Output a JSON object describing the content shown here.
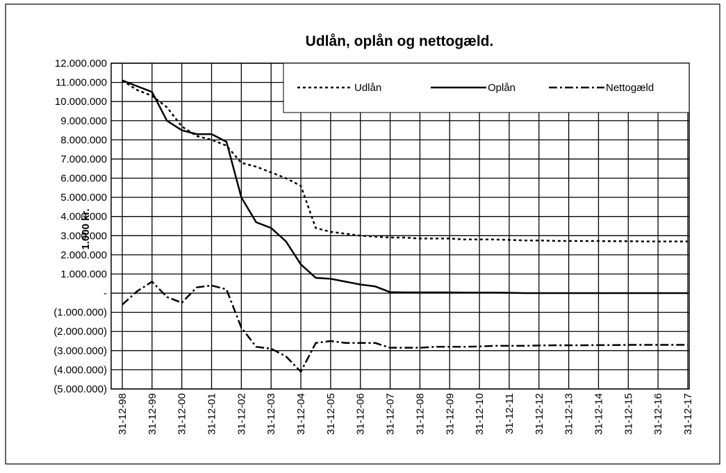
{
  "chart_data": {
    "type": "line",
    "title": "Udlån, oplån og nettogæld.",
    "y_label": "1.000 kr.",
    "categories": [
      "31-12-98",
      null,
      "31-12-99",
      null,
      "31-12-00",
      null,
      "31-12-01",
      null,
      "31-12-02",
      null,
      "31-12-03",
      null,
      "31-12-04",
      null,
      "31-12-05",
      null,
      "31-12-06",
      null,
      "31-12-07",
      null,
      "31-12-08",
      null,
      "31-12-09",
      null,
      "31-12-10",
      null,
      "31-12-11",
      null,
      "31-12-12",
      null,
      "31-12-13",
      null,
      "31-12-14",
      null,
      "31-12-15",
      null,
      "31-12-16",
      null,
      "31-12-17"
    ],
    "series": [
      {
        "name": "Udlån",
        "color": "#000000",
        "line_style": "dotted",
        "values": [
          11100000,
          10600000,
          10300000,
          9700000,
          8700000,
          8200000,
          8000000,
          7700000,
          6800000,
          6600000,
          6300000,
          6000000,
          5600000,
          3400000,
          3200000,
          3100000,
          3000000,
          2950000,
          2900000,
          2900000,
          2850000,
          2850000,
          2850000,
          2800000,
          2800000,
          2800000,
          2780000,
          2750000,
          2750000,
          2730000,
          2720000,
          2720000,
          2720000,
          2710000,
          2710000,
          2700000,
          2700000,
          2700000,
          2700000
        ]
      },
      {
        "name": "Oplån",
        "color": "#000000",
        "line_style": "solid",
        "values": [
          11100000,
          10800000,
          10500000,
          9000000,
          8500000,
          8300000,
          8300000,
          7900000,
          5000000,
          3700000,
          3400000,
          2700000,
          1500000,
          800000,
          750000,
          600000,
          450000,
          350000,
          50000,
          40000,
          40000,
          40000,
          40000,
          30000,
          30000,
          30000,
          20000,
          0,
          0,
          0,
          0,
          0,
          0,
          0,
          0,
          0,
          0,
          0,
          0
        ]
      },
      {
        "name": "Nettogæld",
        "color": "#000000",
        "line_style": "dash-dot",
        "values": [
          -600000,
          100000,
          600000,
          -200000,
          -500000,
          300000,
          400000,
          200000,
          -1800000,
          -2800000,
          -2900000,
          -3300000,
          -4100000,
          -2600000,
          -2500000,
          -2600000,
          -2600000,
          -2600000,
          -2850000,
          -2850000,
          -2850000,
          -2800000,
          -2800000,
          -2800000,
          -2780000,
          -2750000,
          -2750000,
          -2750000,
          -2730000,
          -2720000,
          -2720000,
          -2720000,
          -2710000,
          -2710000,
          -2700000,
          -2700000,
          -2700000,
          -2700000,
          -2700000
        ]
      }
    ],
    "ylim": [
      -5000000,
      12000000
    ],
    "yticks": [
      {
        "value": -5000000,
        "label": "(5.000.000)"
      },
      {
        "value": -4000000,
        "label": "(4.000.000)"
      },
      {
        "value": -3000000,
        "label": "(3.000.000)"
      },
      {
        "value": -2000000,
        "label": "(2.000.000)"
      },
      {
        "value": -1000000,
        "label": "(1.000.000)"
      },
      {
        "value": 0,
        "label": "-"
      },
      {
        "value": 1000000,
        "label": "1.000.000"
      },
      {
        "value": 2000000,
        "label": "2.000.000"
      },
      {
        "value": 3000000,
        "label": "3.000.000"
      },
      {
        "value": 4000000,
        "label": "4.000.000"
      },
      {
        "value": 5000000,
        "label": "5.000.000"
      },
      {
        "value": 6000000,
        "label": "6.000.000"
      },
      {
        "value": 7000000,
        "label": "7.000.000"
      },
      {
        "value": 8000000,
        "label": "8.000.000"
      },
      {
        "value": 9000000,
        "label": "9.000.000"
      },
      {
        "value": 10000000,
        "label": "10.000.000"
      },
      {
        "value": 11000000,
        "label": "11.000.000"
      },
      {
        "value": 12000000,
        "label": "12.000.000"
      }
    ],
    "grid": true,
    "legend": "top-right"
  }
}
